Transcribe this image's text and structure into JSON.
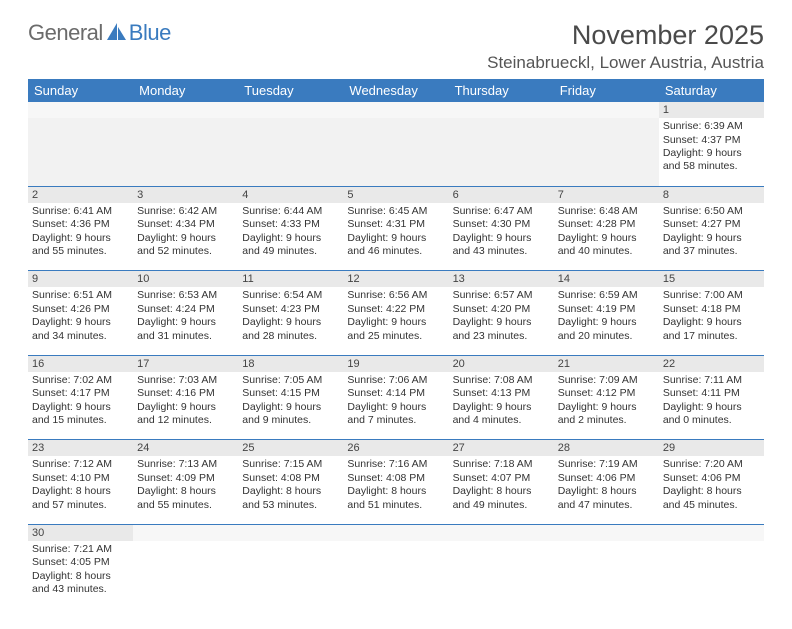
{
  "logo": {
    "word1": "General",
    "word2": "Blue"
  },
  "title": "November 2025",
  "location": "Steinabrueckl, Lower Austria, Austria",
  "colors": {
    "header_bg": "#3a7bbf",
    "header_fg": "#ffffff",
    "daynum_bg": "#e9e9e9",
    "empty_bg": "#f2f2f2",
    "row_divider": "#3a7bbf",
    "title_color": "#4a4a4a",
    "text_color": "#333333"
  },
  "weekdays": [
    "Sunday",
    "Monday",
    "Tuesday",
    "Wednesday",
    "Thursday",
    "Friday",
    "Saturday"
  ],
  "weeks": [
    [
      null,
      null,
      null,
      null,
      null,
      null,
      {
        "n": "1",
        "sr": "6:39 AM",
        "ss": "4:37 PM",
        "dl": "9 hours and 58 minutes."
      }
    ],
    [
      {
        "n": "2",
        "sr": "6:41 AM",
        "ss": "4:36 PM",
        "dl": "9 hours and 55 minutes."
      },
      {
        "n": "3",
        "sr": "6:42 AM",
        "ss": "4:34 PM",
        "dl": "9 hours and 52 minutes."
      },
      {
        "n": "4",
        "sr": "6:44 AM",
        "ss": "4:33 PM",
        "dl": "9 hours and 49 minutes."
      },
      {
        "n": "5",
        "sr": "6:45 AM",
        "ss": "4:31 PM",
        "dl": "9 hours and 46 minutes."
      },
      {
        "n": "6",
        "sr": "6:47 AM",
        "ss": "4:30 PM",
        "dl": "9 hours and 43 minutes."
      },
      {
        "n": "7",
        "sr": "6:48 AM",
        "ss": "4:28 PM",
        "dl": "9 hours and 40 minutes."
      },
      {
        "n": "8",
        "sr": "6:50 AM",
        "ss": "4:27 PM",
        "dl": "9 hours and 37 minutes."
      }
    ],
    [
      {
        "n": "9",
        "sr": "6:51 AM",
        "ss": "4:26 PM",
        "dl": "9 hours and 34 minutes."
      },
      {
        "n": "10",
        "sr": "6:53 AM",
        "ss": "4:24 PM",
        "dl": "9 hours and 31 minutes."
      },
      {
        "n": "11",
        "sr": "6:54 AM",
        "ss": "4:23 PM",
        "dl": "9 hours and 28 minutes."
      },
      {
        "n": "12",
        "sr": "6:56 AM",
        "ss": "4:22 PM",
        "dl": "9 hours and 25 minutes."
      },
      {
        "n": "13",
        "sr": "6:57 AM",
        "ss": "4:20 PM",
        "dl": "9 hours and 23 minutes."
      },
      {
        "n": "14",
        "sr": "6:59 AM",
        "ss": "4:19 PM",
        "dl": "9 hours and 20 minutes."
      },
      {
        "n": "15",
        "sr": "7:00 AM",
        "ss": "4:18 PM",
        "dl": "9 hours and 17 minutes."
      }
    ],
    [
      {
        "n": "16",
        "sr": "7:02 AM",
        "ss": "4:17 PM",
        "dl": "9 hours and 15 minutes."
      },
      {
        "n": "17",
        "sr": "7:03 AM",
        "ss": "4:16 PM",
        "dl": "9 hours and 12 minutes."
      },
      {
        "n": "18",
        "sr": "7:05 AM",
        "ss": "4:15 PM",
        "dl": "9 hours and 9 minutes."
      },
      {
        "n": "19",
        "sr": "7:06 AM",
        "ss": "4:14 PM",
        "dl": "9 hours and 7 minutes."
      },
      {
        "n": "20",
        "sr": "7:08 AM",
        "ss": "4:13 PM",
        "dl": "9 hours and 4 minutes."
      },
      {
        "n": "21",
        "sr": "7:09 AM",
        "ss": "4:12 PM",
        "dl": "9 hours and 2 minutes."
      },
      {
        "n": "22",
        "sr": "7:11 AM",
        "ss": "4:11 PM",
        "dl": "9 hours and 0 minutes."
      }
    ],
    [
      {
        "n": "23",
        "sr": "7:12 AM",
        "ss": "4:10 PM",
        "dl": "8 hours and 57 minutes."
      },
      {
        "n": "24",
        "sr": "7:13 AM",
        "ss": "4:09 PM",
        "dl": "8 hours and 55 minutes."
      },
      {
        "n": "25",
        "sr": "7:15 AM",
        "ss": "4:08 PM",
        "dl": "8 hours and 53 minutes."
      },
      {
        "n": "26",
        "sr": "7:16 AM",
        "ss": "4:08 PM",
        "dl": "8 hours and 51 minutes."
      },
      {
        "n": "27",
        "sr": "7:18 AM",
        "ss": "4:07 PM",
        "dl": "8 hours and 49 minutes."
      },
      {
        "n": "28",
        "sr": "7:19 AM",
        "ss": "4:06 PM",
        "dl": "8 hours and 47 minutes."
      },
      {
        "n": "29",
        "sr": "7:20 AM",
        "ss": "4:06 PM",
        "dl": "8 hours and 45 minutes."
      }
    ],
    [
      {
        "n": "30",
        "sr": "7:21 AM",
        "ss": "4:05 PM",
        "dl": "8 hours and 43 minutes."
      },
      null,
      null,
      null,
      null,
      null,
      null
    ]
  ],
  "labels": {
    "sunrise": "Sunrise:",
    "sunset": "Sunset:",
    "daylight": "Daylight:"
  }
}
